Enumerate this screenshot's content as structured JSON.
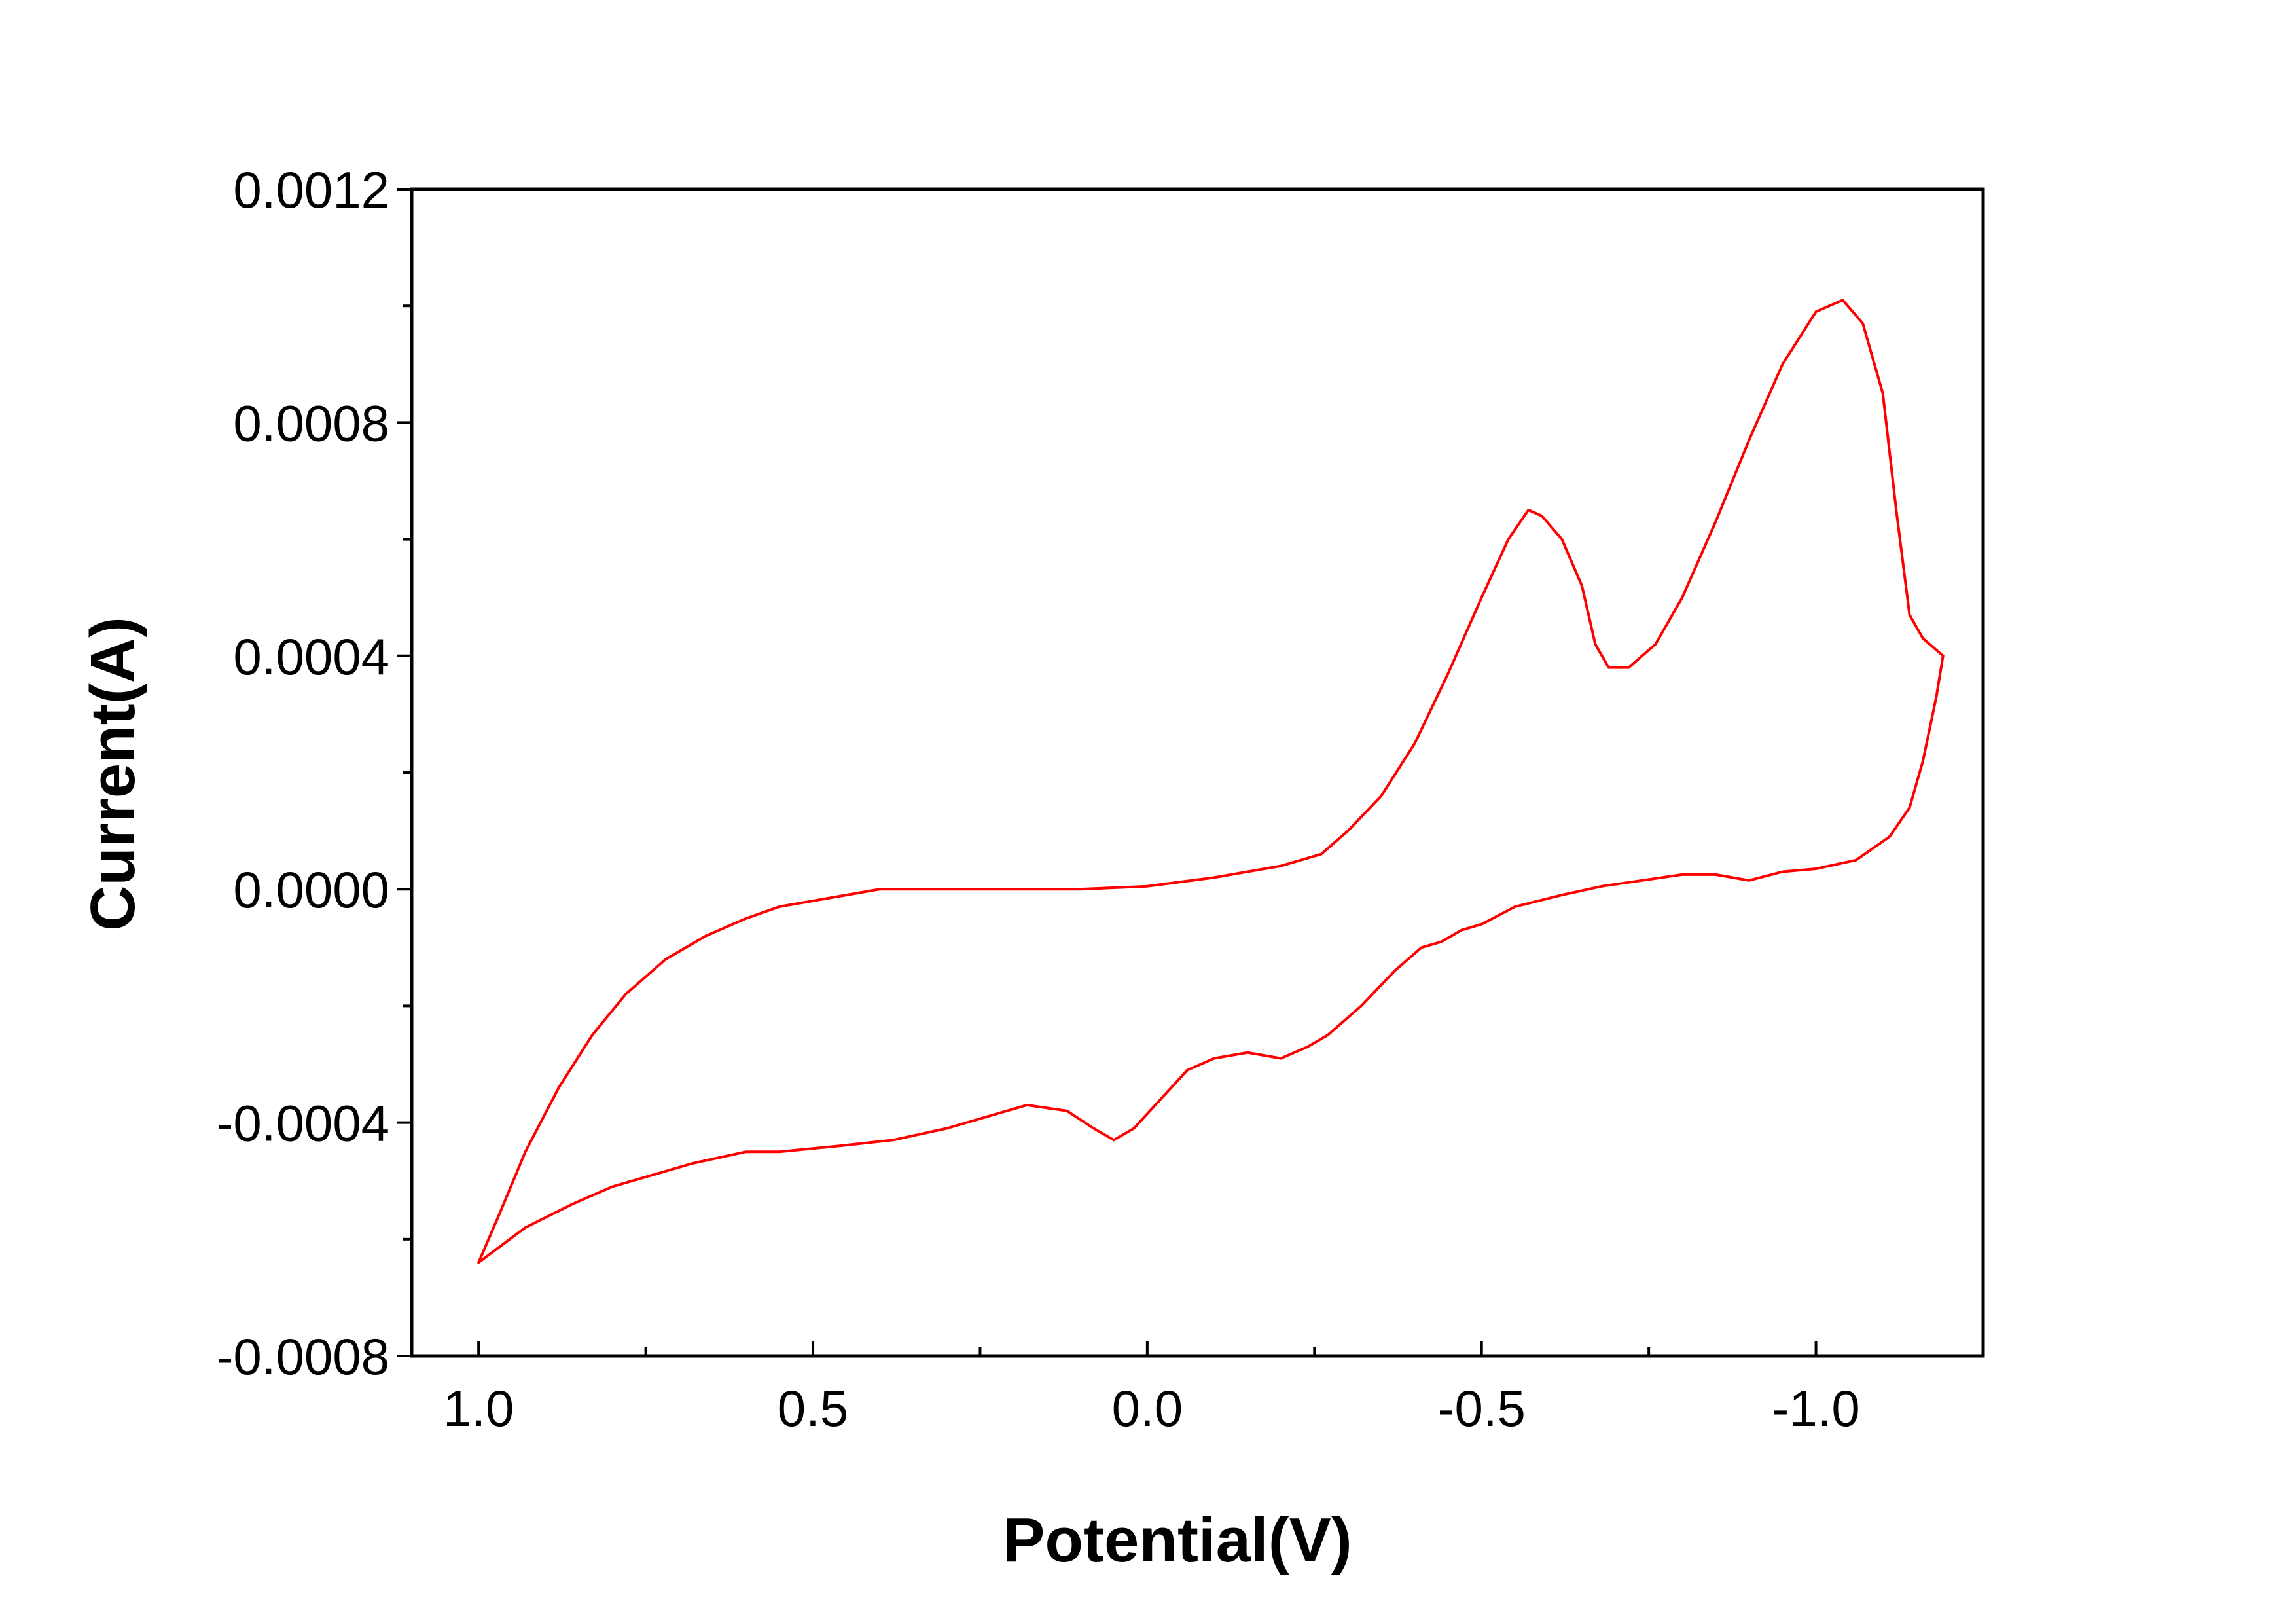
{
  "chart_data": {
    "type": "line",
    "title": "",
    "xlabel": "Potential(V)",
    "ylabel": "Current(A)",
    "x_reversed": true,
    "xlim": [
      1.1,
      -1.25
    ],
    "ylim": [
      -0.0008,
      0.0012
    ],
    "x_ticks": [
      1.0,
      0.5,
      0.0,
      -0.5,
      -1.0
    ],
    "x_tick_labels": [
      "1.0",
      "0.5",
      "0.0",
      "-0.5",
      "-1.0"
    ],
    "x_minor_ticks": [
      0.75,
      0.25,
      -0.25,
      -0.75
    ],
    "y_ticks": [
      -0.0008,
      -0.0004,
      0.0,
      0.0004,
      0.0008,
      0.0012
    ],
    "y_tick_labels": [
      "-0.0008",
      "-0.0004",
      "0.0000",
      "0.0004",
      "0.0008",
      "0.0012"
    ],
    "y_minor_ticks": [
      -0.0006,
      -0.0002,
      0.0002,
      0.0006,
      0.001
    ],
    "grid": false,
    "legend": "none",
    "series": [
      {
        "color": "#ff0000",
        "points": [
          [
            1.0,
            -0.00064
          ],
          [
            0.97,
            -0.00056
          ],
          [
            0.93,
            -0.00045
          ],
          [
            0.88,
            -0.00034
          ],
          [
            0.83,
            -0.00025
          ],
          [
            0.78,
            -0.00018
          ],
          [
            0.72,
            -0.00012
          ],
          [
            0.66,
            -8e-05
          ],
          [
            0.6,
            -5e-05
          ],
          [
            0.55,
            -3e-05
          ],
          [
            0.5,
            -2e-05
          ],
          [
            0.45,
            -1e-05
          ],
          [
            0.4,
            0.0
          ],
          [
            0.3,
            0.0
          ],
          [
            0.2,
            0.0
          ],
          [
            0.1,
            0.0
          ],
          [
            0.0,
            5e-06
          ],
          [
            -0.1,
            2e-05
          ],
          [
            -0.2,
            4e-05
          ],
          [
            -0.26,
            6e-05
          ],
          [
            -0.3,
            0.0001
          ],
          [
            -0.35,
            0.00016
          ],
          [
            -0.4,
            0.00025
          ],
          [
            -0.45,
            0.00037
          ],
          [
            -0.5,
            0.0005
          ],
          [
            -0.54,
            0.0006
          ],
          [
            -0.57,
            0.00065
          ],
          [
            -0.59,
            0.00064
          ],
          [
            -0.62,
            0.0006
          ],
          [
            -0.65,
            0.00052
          ],
          [
            -0.67,
            0.00042
          ],
          [
            -0.69,
            0.00038
          ],
          [
            -0.72,
            0.00038
          ],
          [
            -0.76,
            0.00042
          ],
          [
            -0.8,
            0.0005
          ],
          [
            -0.85,
            0.00063
          ],
          [
            -0.9,
            0.00077
          ],
          [
            -0.95,
            0.0009
          ],
          [
            -1.0,
            0.00099
          ],
          [
            -1.04,
            0.00101
          ],
          [
            -1.07,
            0.00097
          ],
          [
            -1.1,
            0.00085
          ],
          [
            -1.12,
            0.00065
          ],
          [
            -1.14,
            0.00047
          ],
          [
            -1.16,
            0.00043
          ],
          [
            -1.19,
            0.0004
          ],
          [
            -1.18,
            0.00033
          ],
          [
            -1.16,
            0.00022
          ],
          [
            -1.14,
            0.00014
          ],
          [
            -1.11,
            9e-05
          ],
          [
            -1.06,
            5e-05
          ],
          [
            -1.0,
            3.5e-05
          ],
          [
            -0.95,
            3e-05
          ],
          [
            -0.9,
            1.5e-05
          ],
          [
            -0.85,
            2.5e-05
          ],
          [
            -0.8,
            2.5e-05
          ],
          [
            -0.74,
            1.5e-05
          ],
          [
            -0.68,
            5e-06
          ],
          [
            -0.62,
            -1e-05
          ],
          [
            -0.55,
            -3e-05
          ],
          [
            -0.5,
            -6e-05
          ],
          [
            -0.47,
            -7e-05
          ],
          [
            -0.44,
            -9e-05
          ],
          [
            -0.41,
            -0.0001
          ],
          [
            -0.37,
            -0.00014
          ],
          [
            -0.32,
            -0.0002
          ],
          [
            -0.27,
            -0.00025
          ],
          [
            -0.24,
            -0.00027
          ],
          [
            -0.2,
            -0.00029
          ],
          [
            -0.15,
            -0.00028
          ],
          [
            -0.1,
            -0.00029
          ],
          [
            -0.06,
            -0.00031
          ],
          [
            -0.02,
            -0.00036
          ],
          [
            0.02,
            -0.00041
          ],
          [
            0.05,
            -0.00043
          ],
          [
            0.08,
            -0.00041
          ],
          [
            0.12,
            -0.00038
          ],
          [
            0.18,
            -0.00037
          ],
          [
            0.24,
            -0.00039
          ],
          [
            0.3,
            -0.00041
          ],
          [
            0.38,
            -0.00043
          ],
          [
            0.46,
            -0.00044
          ],
          [
            0.55,
            -0.00045
          ],
          [
            0.6,
            -0.00045
          ],
          [
            0.68,
            -0.00047
          ],
          [
            0.74,
            -0.00049
          ],
          [
            0.8,
            -0.00051
          ],
          [
            0.86,
            -0.00054
          ],
          [
            0.93,
            -0.00058
          ],
          [
            1.0,
            -0.00064
          ]
        ]
      }
    ]
  }
}
